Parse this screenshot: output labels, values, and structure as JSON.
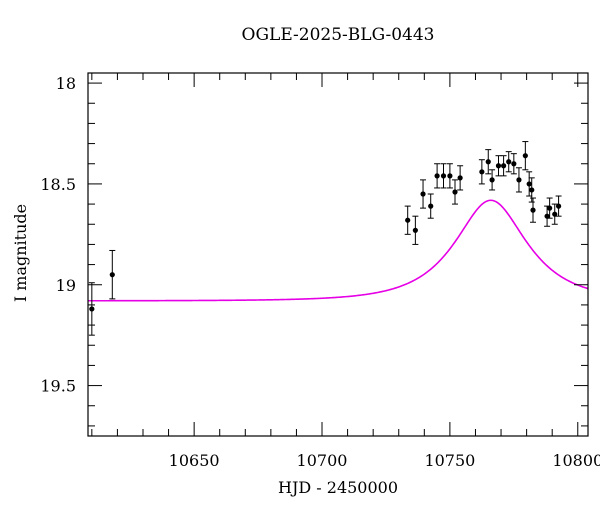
{
  "chart_data": {
    "type": "scatter",
    "title": "OGLE-2025-BLG-0443",
    "xlabel": "HJD - 2450000",
    "ylabel": "I magnitude",
    "xlim": [
      10608.5,
      10804
    ],
    "ylim": [
      19.75,
      17.95
    ],
    "y_inverted": true,
    "grid": false,
    "legend": "none",
    "x_ticks": [
      10650,
      10700,
      10750,
      10800
    ],
    "x_tick_labels": [
      "10650",
      "10700",
      "10750",
      "10800"
    ],
    "y_ticks": [
      18,
      18.5,
      19,
      19.5
    ],
    "y_tick_labels": [
      "18",
      "18.5",
      "19",
      "19.5"
    ],
    "model_color": "#e600e6",
    "points_color": "#000000",
    "model": {
      "t0": 10766,
      "tE": 23,
      "u0": 0.6,
      "mag_base": 19.08,
      "blend_fraction": 0.66
    },
    "series": [
      {
        "values": [
          {
            "x": 10610.0,
            "y": 19.12,
            "err": 0.13
          },
          {
            "x": 10618.0,
            "y": 18.95,
            "err": 0.12
          },
          {
            "x": 10733.5,
            "y": 18.68,
            "err": 0.07
          },
          {
            "x": 10736.5,
            "y": 18.73,
            "err": 0.07
          },
          {
            "x": 10739.5,
            "y": 18.55,
            "err": 0.07
          },
          {
            "x": 10742.5,
            "y": 18.61,
            "err": 0.06
          },
          {
            "x": 10745.0,
            "y": 18.46,
            "err": 0.06
          },
          {
            "x": 10747.5,
            "y": 18.46,
            "err": 0.06
          },
          {
            "x": 10750.0,
            "y": 18.46,
            "err": 0.06
          },
          {
            "x": 10752.0,
            "y": 18.54,
            "err": 0.06
          },
          {
            "x": 10754.0,
            "y": 18.47,
            "err": 0.06
          },
          {
            "x": 10762.5,
            "y": 18.44,
            "err": 0.06
          },
          {
            "x": 10765.0,
            "y": 18.39,
            "err": 0.06
          },
          {
            "x": 10766.5,
            "y": 18.48,
            "err": 0.05
          },
          {
            "x": 10769.0,
            "y": 18.41,
            "err": 0.05
          },
          {
            "x": 10771.0,
            "y": 18.41,
            "err": 0.05
          },
          {
            "x": 10773.0,
            "y": 18.39,
            "err": 0.05
          },
          {
            "x": 10775.0,
            "y": 18.4,
            "err": 0.05
          },
          {
            "x": 10777.0,
            "y": 18.48,
            "err": 0.06
          },
          {
            "x": 10779.5,
            "y": 18.36,
            "err": 0.07
          },
          {
            "x": 10781.0,
            "y": 18.5,
            "err": 0.06
          },
          {
            "x": 10782.0,
            "y": 18.53,
            "err": 0.06
          },
          {
            "x": 10782.5,
            "y": 18.63,
            "err": 0.06
          },
          {
            "x": 10788.0,
            "y": 18.66,
            "err": 0.05
          },
          {
            "x": 10789.0,
            "y": 18.62,
            "err": 0.05
          },
          {
            "x": 10791.0,
            "y": 18.65,
            "err": 0.05
          },
          {
            "x": 10792.5,
            "y": 18.61,
            "err": 0.05
          }
        ]
      }
    ]
  }
}
